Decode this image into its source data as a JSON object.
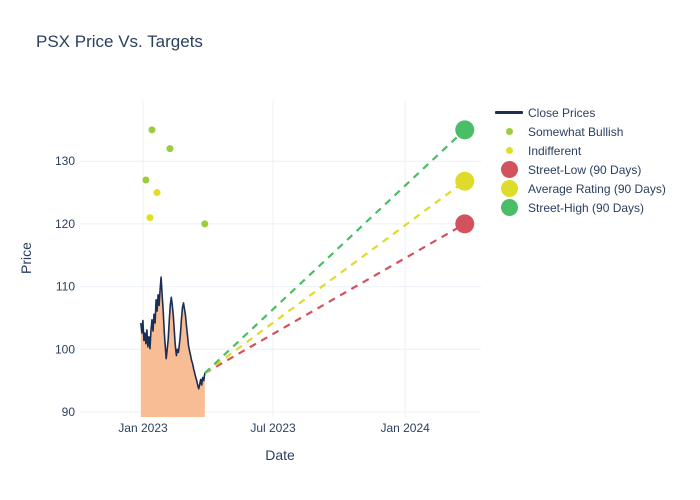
{
  "title": "PSX Price Vs. Targets",
  "colors": {
    "text": "#2a3f5f",
    "background": "#ffffff",
    "grid": "#ebf0f8",
    "close_line": "#1c2f52",
    "close_fill": "#f9bd95",
    "somewhat_bullish": "#9bcc3a",
    "indifferent": "#e2de26",
    "street_low": "#d3525d",
    "average_rating": "#dedb2b",
    "street_high": "#4abd67"
  },
  "legend": [
    {
      "label": "Close Prices",
      "type": "line",
      "color": "#1c2f52"
    },
    {
      "label": "Somewhat Bullish",
      "type": "dot-small",
      "color": "#9bcc3a"
    },
    {
      "label": "Indifferent",
      "type": "dot-small",
      "color": "#e2de26"
    },
    {
      "label": "Street-Low (90 Days)",
      "type": "dot-large",
      "color": "#d3525d"
    },
    {
      "label": "Average Rating (90 Days)",
      "type": "dot-large",
      "color": "#dedb2b"
    },
    {
      "label": "Street-High (90 Days)",
      "type": "dot-large",
      "color": "#4abd67"
    }
  ],
  "chart_data": {
    "type": "line",
    "title": "PSX Price Vs. Targets",
    "xlabel": "Date",
    "ylabel": "Price",
    "grid": true,
    "legend_position": "right-top",
    "x_ticks": [
      {
        "label": "Jan 2023",
        "day": 0
      },
      {
        "label": "Jul 2023",
        "day": 181
      },
      {
        "label": "Jan 2024",
        "day": 365
      }
    ],
    "y_ticks": [
      90,
      100,
      110,
      120,
      130
    ],
    "x_range_days": [
      -88,
      469
    ],
    "y_range": [
      89.2,
      139.8
    ],
    "series": {
      "close_prices": {
        "name": "Close Prices",
        "start_day": -3,
        "end_day": 86,
        "prices": [
          104.2,
          102.6,
          104.6,
          101.4,
          102.6,
          100.9,
          103.1,
          100.4,
          102.0,
          100.1,
          103.1,
          104.7,
          102.9,
          105.6,
          104.2,
          107.9,
          106.1,
          108.7,
          107.0,
          109.5,
          111.5,
          108.5,
          106.1,
          102.9,
          100.6,
          98.5,
          100.0,
          101.6,
          104.7,
          107.1,
          108.3,
          107.0,
          105.4,
          102.9,
          100.6,
          99.0,
          100.0,
          99.5,
          100.8,
          102.4,
          104.7,
          106.6,
          107.4,
          106.4,
          105.4,
          103.7,
          102.2,
          100.6,
          99.8,
          99.0,
          98.2,
          97.7,
          96.9,
          96.3,
          95.6,
          95.0,
          94.3,
          93.7,
          94.4,
          95.2,
          94.3,
          95.5,
          95.0,
          96.2
        ]
      },
      "somewhat_bullish": {
        "name": "Somewhat Bullish",
        "points": [
          [
            4,
            127
          ],
          [
            12.5,
            135
          ],
          [
            37.5,
            132
          ],
          [
            86,
            120
          ]
        ]
      },
      "indifferent": {
        "name": "Indifferent",
        "points": [
          [
            9.7,
            121
          ],
          [
            19.5,
            125
          ]
        ]
      },
      "projection_start": {
        "day": 86,
        "price": 96.2
      },
      "targets": [
        {
          "name": "Street-Low (90 Days)",
          "key": "street_low",
          "day": 448,
          "price": 120
        },
        {
          "name": "Average Rating (90 Days)",
          "key": "average_rating",
          "day": 448,
          "price": 126.8
        },
        {
          "name": "Street-High (90 Days)",
          "key": "street_high",
          "day": 448,
          "price": 135
        }
      ]
    }
  }
}
